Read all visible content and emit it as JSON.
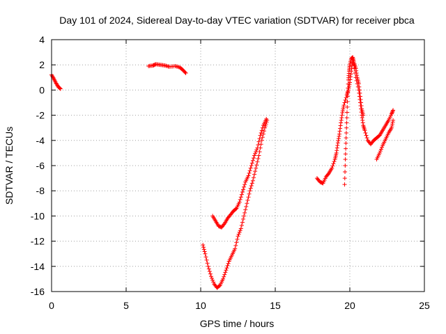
{
  "chart_data": {
    "type": "scatter",
    "title": "Day 101 of 2024, Sidereal Day-to-day VTEC variation (SDTVAR) for receiver pbca",
    "xlabel": "GPS time / hours",
    "ylabel": "SDTVAR / TECUs",
    "xlim": [
      0,
      25
    ],
    "ylim": [
      -16,
      4
    ],
    "xticks": [
      0,
      5,
      10,
      15,
      20,
      25
    ],
    "yticks": [
      -16,
      -14,
      -12,
      -10,
      -8,
      -6,
      -4,
      -2,
      0,
      2,
      4
    ],
    "grid": true,
    "marker": "+",
    "color": "#ff0000",
    "series": [
      {
        "name": "SDTVAR",
        "segments": [
          [
            [
              0.0,
              1.2
            ],
            [
              0.15,
              0.9
            ],
            [
              0.3,
              0.55
            ],
            [
              0.45,
              0.25
            ],
            [
              0.6,
              0.1
            ]
          ],
          [
            [
              6.5,
              1.9
            ],
            [
              6.8,
              1.95
            ],
            [
              7.0,
              2.05
            ],
            [
              7.3,
              2.0
            ],
            [
              7.6,
              1.95
            ],
            [
              7.9,
              1.85
            ],
            [
              8.3,
              1.9
            ],
            [
              8.6,
              1.8
            ],
            [
              8.8,
              1.6
            ],
            [
              9.0,
              1.35
            ]
          ],
          [
            [
              10.15,
              -12.3
            ],
            [
              10.3,
              -13.0
            ],
            [
              10.5,
              -14.0
            ],
            [
              10.7,
              -14.8
            ],
            [
              10.9,
              -15.4
            ],
            [
              11.1,
              -15.7
            ],
            [
              11.3,
              -15.5
            ],
            [
              11.5,
              -15.0
            ],
            [
              11.7,
              -14.3
            ],
            [
              11.9,
              -13.6
            ],
            [
              12.1,
              -13.1
            ],
            [
              12.3,
              -12.6
            ],
            [
              12.5,
              -11.6
            ],
            [
              12.7,
              -11.0
            ],
            [
              12.9,
              -10.0
            ],
            [
              13.1,
              -9.0
            ],
            [
              13.3,
              -8.0
            ],
            [
              13.5,
              -7.2
            ],
            [
              13.7,
              -6.2
            ],
            [
              13.9,
              -5.2
            ],
            [
              14.1,
              -4.0
            ],
            [
              14.3,
              -3.0
            ],
            [
              14.45,
              -2.4
            ]
          ],
          [
            [
              10.8,
              -10.0
            ],
            [
              11.0,
              -10.4
            ],
            [
              11.2,
              -10.8
            ],
            [
              11.4,
              -10.9
            ],
            [
              11.6,
              -10.6
            ],
            [
              11.8,
              -10.2
            ],
            [
              12.0,
              -9.9
            ],
            [
              12.2,
              -9.6
            ],
            [
              12.4,
              -9.4
            ],
            [
              12.6,
              -8.9
            ],
            [
              12.8,
              -8.1
            ],
            [
              13.0,
              -7.3
            ],
            [
              13.2,
              -6.8
            ],
            [
              13.4,
              -6.0
            ],
            [
              13.6,
              -5.2
            ],
            [
              13.8,
              -4.6
            ],
            [
              14.0,
              -3.6
            ],
            [
              14.2,
              -2.8
            ],
            [
              14.4,
              -2.3
            ]
          ],
          [
            [
              17.8,
              -7.0
            ],
            [
              18.0,
              -7.3
            ],
            [
              18.2,
              -7.4
            ],
            [
              18.4,
              -6.9
            ],
            [
              18.6,
              -6.6
            ],
            [
              18.8,
              -6.2
            ],
            [
              19.0,
              -5.5
            ],
            [
              19.1,
              -5.0
            ],
            [
              19.2,
              -4.2
            ],
            [
              19.3,
              -3.5
            ],
            [
              19.4,
              -2.6
            ],
            [
              19.5,
              -1.8
            ],
            [
              19.6,
              -1.2
            ],
            [
              19.8,
              -0.4
            ],
            [
              19.9,
              0.0
            ],
            [
              20.0,
              0.6
            ],
            [
              20.1,
              1.5
            ],
            [
              20.2,
              2.4
            ],
            [
              20.4,
              1.0
            ],
            [
              20.6,
              0.0
            ],
            [
              20.7,
              -1.0
            ],
            [
              20.8,
              -2.0
            ],
            [
              20.9,
              -2.8
            ],
            [
              21.0,
              -3.2
            ],
            [
              21.2,
              -4.0
            ],
            [
              21.4,
              -4.3
            ],
            [
              21.6,
              -4.0
            ],
            [
              21.8,
              -3.8
            ],
            [
              22.0,
              -3.6
            ],
            [
              22.2,
              -3.2
            ],
            [
              22.4,
              -2.8
            ],
            [
              22.6,
              -2.4
            ],
            [
              22.8,
              -1.9
            ],
            [
              22.9,
              -1.6
            ]
          ],
          [
            [
              19.65,
              -7.5
            ],
            [
              19.7,
              -5.5
            ],
            [
              19.75,
              -3.8
            ],
            [
              19.8,
              -2.2
            ],
            [
              19.85,
              -0.5
            ],
            [
              19.9,
              0.8
            ],
            [
              19.95,
              1.5
            ],
            [
              20.0,
              2.0
            ],
            [
              20.1,
              2.5
            ],
            [
              20.2,
              2.6
            ],
            [
              20.3,
              2.1
            ],
            [
              20.4,
              1.7
            ],
            [
              20.5,
              1.0
            ],
            [
              20.6,
              0.5
            ],
            [
              20.7,
              -0.5
            ],
            [
              20.8,
              -1.5
            ],
            [
              20.9,
              -2.0
            ]
          ],
          [
            [
              21.8,
              -5.5
            ],
            [
              22.0,
              -5.0
            ],
            [
              22.2,
              -4.4
            ],
            [
              22.4,
              -3.9
            ],
            [
              22.6,
              -3.4
            ],
            [
              22.8,
              -3.0
            ],
            [
              22.9,
              -2.4
            ]
          ]
        ]
      }
    ]
  }
}
